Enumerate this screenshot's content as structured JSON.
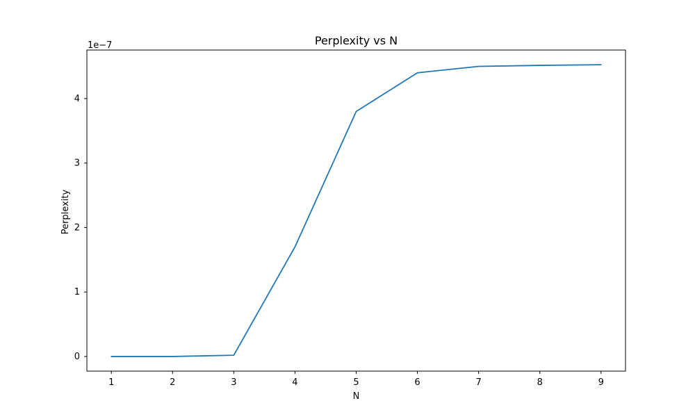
{
  "chart_data": {
    "type": "line",
    "title": "Perplexity vs N",
    "xlabel": "N",
    "ylabel": "Perplexity",
    "offset_label": "1e−7",
    "x": [
      1,
      2,
      3,
      4,
      5,
      6,
      7,
      8,
      9
    ],
    "series": [
      {
        "values": [
          0.0,
          0.0,
          2e-09,
          1.7e-07,
          3.8e-07,
          4.4e-07,
          4.5e-07,
          4.515e-07,
          4.525e-07
        ]
      }
    ],
    "xlim": [
      0.6,
      9.4
    ],
    "ylim": [
      -2.27e-08,
      4.753e-07
    ],
    "xticks": [
      1,
      2,
      3,
      4,
      5,
      6,
      7,
      8,
      9
    ],
    "yticks": [
      {
        "value": 0,
        "label": "0"
      },
      {
        "value": 1e-07,
        "label": "1"
      },
      {
        "value": 2e-07,
        "label": "2"
      },
      {
        "value": 3e-07,
        "label": "3"
      },
      {
        "value": 4e-07,
        "label": "4"
      }
    ],
    "line_color": "#1f77b4",
    "grid": false,
    "legend": "none"
  }
}
